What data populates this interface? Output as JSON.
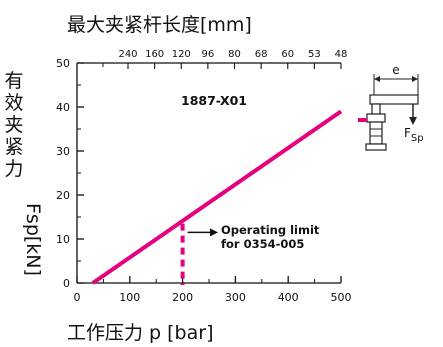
{
  "title_top": "最大夹紧杆长度[mm]",
  "title_bottom": "工作压力 p [bar]",
  "title_left_chars": [
    "有",
    "效",
    "夹",
    "紧",
    "力"
  ],
  "title_left_unit": "Fsp[kN]",
  "model_label": "1887-X01",
  "note_lines": [
    "Operating limit",
    "for 0354-005"
  ],
  "diagram": {
    "e_label": "e",
    "f_label": "F",
    "f_sub": "Sp"
  },
  "chart_data": {
    "type": "line",
    "title": "",
    "xlabel": "工作压力 p [bar]",
    "ylabel": "有效夹紧力 Fsp[kN]",
    "x_top_label": "最大夹紧杆长度[mm]",
    "xlim": [
      0,
      500
    ],
    "ylim": [
      0,
      50
    ],
    "x_ticks": [
      0,
      100,
      200,
      300,
      400,
      500
    ],
    "y_ticks": [
      0,
      10,
      20,
      30,
      40,
      50
    ],
    "top_ticks": [
      "240",
      "160",
      "120",
      "96",
      "80",
      "68",
      "60",
      "53",
      "48"
    ],
    "series": [
      {
        "name": "1887-X01",
        "x": [
          30,
          500
        ],
        "y": [
          0,
          39
        ],
        "color": "#e6007e"
      }
    ],
    "operating_limit": {
      "x": 200,
      "label": "Operating limit for 0354-005"
    },
    "grid": false
  }
}
